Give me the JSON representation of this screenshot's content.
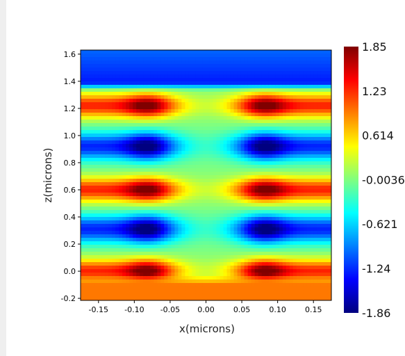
{
  "chart_data": {
    "type": "heatmap",
    "title": "",
    "xlabel": "x(microns)",
    "ylabel": "z(microns)",
    "xlim": [
      -0.175,
      0.175
    ],
    "ylim": [
      -0.215,
      1.63
    ],
    "x_ticks": [
      "-0.15",
      "-0.10",
      "-0.05",
      "0.00",
      "0.05",
      "0.10",
      "0.15"
    ],
    "x_tick_values": [
      -0.15,
      -0.1,
      -0.05,
      0.0,
      0.05,
      0.1,
      0.15
    ],
    "y_ticks": [
      "-0.2",
      "0.0",
      "0.2",
      "0.4",
      "0.6",
      "0.8",
      "1.0",
      "1.2",
      "1.4",
      "1.6"
    ],
    "y_tick_values": [
      -0.2,
      0.0,
      0.2,
      0.4,
      0.6,
      0.8,
      1.0,
      1.2,
      1.4,
      1.6
    ],
    "colormap": "jet",
    "colorbar": {
      "min": -1.86,
      "max": 1.85,
      "labels": [
        "1.85",
        "1.23",
        "0.614",
        "-0.00363",
        "-0.621",
        "-1.24",
        "-1.86"
      ],
      "label_values": [
        1.85,
        1.23,
        0.614,
        -0.00363,
        -0.621,
        -1.24,
        -1.86
      ]
    },
    "field_bands": {
      "positive_z": [
        0.0,
        0.6,
        1.22
      ],
      "negative_z": [
        0.31,
        0.92
      ],
      "hotspot_x": [
        -0.08,
        0.08
      ],
      "center_x": 0.0,
      "bottom_level": 0.95,
      "top_level": -1.3
    },
    "grid": false
  }
}
